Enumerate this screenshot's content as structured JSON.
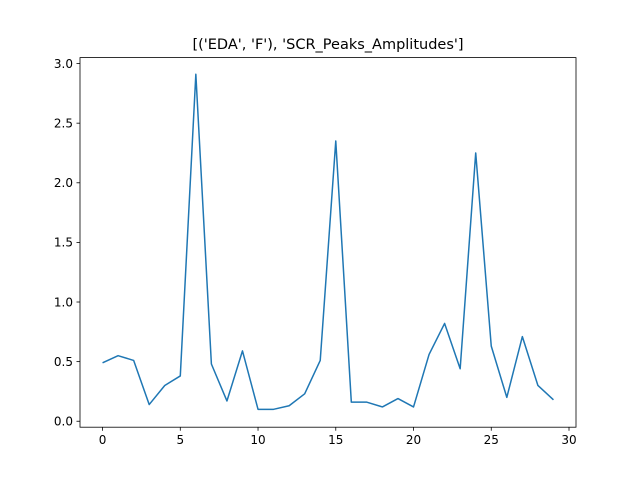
{
  "chart_data": {
    "type": "line",
    "title": "[('EDA', 'F'), 'SCR_Peaks_Amplitudes']",
    "xlabel": "",
    "ylabel": "",
    "xlim": [
      -1.45,
      30.45
    ],
    "ylim": [
      -0.05,
      3.05
    ],
    "grid": false,
    "legend": "none",
    "x_ticks": [
      0,
      5,
      10,
      15,
      20,
      25,
      30
    ],
    "x_tick_labels": [
      "0",
      "5",
      "10",
      "15",
      "20",
      "25",
      "30"
    ],
    "y_ticks": [
      0.0,
      0.5,
      1.0,
      1.5,
      2.0,
      2.5,
      3.0
    ],
    "y_tick_labels": [
      "0.0",
      "0.5",
      "1.0",
      "1.5",
      "2.0",
      "2.5",
      "3.0"
    ],
    "colors": {
      "line": "#1f77b4",
      "axes": "#000000",
      "background": "#ffffff"
    },
    "series": [
      {
        "x": [
          0,
          1,
          2,
          3,
          4,
          5,
          6,
          7,
          8,
          9,
          10,
          11,
          12,
          13,
          14,
          15,
          16,
          17,
          18,
          19,
          20,
          21,
          22,
          23,
          24,
          25,
          26,
          27,
          28,
          29
        ],
        "values": [
          0.49,
          0.55,
          0.51,
          0.14,
          0.3,
          0.38,
          2.91,
          0.48,
          0.17,
          0.59,
          0.1,
          0.1,
          0.13,
          0.23,
          0.51,
          2.35,
          0.16,
          0.16,
          0.12,
          0.19,
          0.12,
          0.56,
          0.82,
          0.44,
          2.25,
          0.63,
          0.2,
          0.71,
          0.3,
          0.18
        ]
      }
    ]
  }
}
